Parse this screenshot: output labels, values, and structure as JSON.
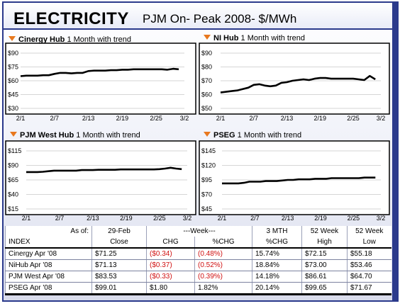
{
  "header": {
    "title": "ELECTRICITY",
    "subtitle": "PJM On- Peak 2008- $/MWh"
  },
  "chart_data": [
    {
      "type": "line",
      "title": "Cinergy Hub",
      "subtitle": "1 Month with trend",
      "x_ticks": [
        "2/1",
        "2/7",
        "2/13",
        "2/19",
        "2/25",
        "3/2"
      ],
      "y_ticks": [
        "$90",
        "$75",
        "$60",
        "$45",
        "$30"
      ],
      "ylim": [
        30,
        90
      ],
      "series": [
        {
          "color": "#000000",
          "x": [
            1,
            2,
            3,
            4,
            5,
            6,
            7,
            8,
            9,
            10,
            11,
            12,
            13,
            14,
            15,
            16,
            17,
            18,
            19,
            20,
            21,
            22,
            23,
            24,
            25,
            26,
            27,
            28,
            29
          ],
          "y": [
            65,
            65.5,
            65.5,
            65.5,
            66,
            66,
            67.5,
            68.5,
            68.5,
            68,
            68.5,
            68.5,
            70.5,
            71,
            71,
            71,
            71.5,
            71.5,
            72,
            72,
            72.5,
            72.5,
            72.5,
            72.5,
            72.5,
            72.5,
            72,
            73,
            72.5
          ]
        }
      ]
    },
    {
      "type": "line",
      "title": "NI Hub",
      "subtitle": "1 Month with trend",
      "x_ticks": [
        "2/1",
        "2/7",
        "2/13",
        "2/19",
        "2/25",
        "3/2"
      ],
      "y_ticks": [
        "$90",
        "$80",
        "$70",
        "$60",
        "$50"
      ],
      "ylim": [
        50,
        90
      ],
      "series": [
        {
          "color": "#000000",
          "x": [
            1,
            2,
            3,
            4,
            5,
            6,
            7,
            8,
            9,
            10,
            11,
            12,
            13,
            14,
            15,
            16,
            17,
            18,
            19,
            20,
            21,
            22,
            23,
            24,
            25,
            26,
            27,
            28,
            29
          ],
          "y": [
            61.5,
            62,
            62.5,
            63,
            64,
            65,
            67,
            67.5,
            66.5,
            66,
            66.5,
            68.5,
            69,
            70,
            70.5,
            71,
            70.5,
            71.5,
            72,
            72,
            71.5,
            71.5,
            71.5,
            71.5,
            71.5,
            71,
            70.5,
            73.5,
            71
          ]
        }
      ]
    },
    {
      "type": "line",
      "title": "PJM West Hub",
      "subtitle": "1 Month with trend",
      "x_ticks": [
        "2/1",
        "2/7",
        "2/13",
        "2/19",
        "2/25",
        "3/2"
      ],
      "y_ticks": [
        "$115",
        "$90",
        "$65",
        "$40",
        "$15"
      ],
      "ylim": [
        15,
        115
      ],
      "series": [
        {
          "color": "#000000",
          "x": [
            1,
            2,
            3,
            4,
            5,
            6,
            7,
            8,
            9,
            10,
            11,
            12,
            13,
            14,
            15,
            16,
            17,
            18,
            19,
            20,
            21,
            22,
            23,
            24,
            25,
            26,
            27,
            28,
            29
          ],
          "y": [
            78.5,
            78.5,
            78.5,
            79,
            80,
            81,
            81,
            81,
            81,
            81,
            82,
            82,
            82,
            82.5,
            82.5,
            82.5,
            82.5,
            83,
            83,
            83,
            83,
            83,
            83,
            83,
            83.5,
            84.5,
            86,
            84.5,
            83.5
          ]
        }
      ]
    },
    {
      "type": "line",
      "title": "PSEG",
      "subtitle": "1 Month with trend",
      "x_ticks": [
        "2/1",
        "2/7",
        "2/13",
        "2/19",
        "2/25",
        "3/2"
      ],
      "y_ticks": [
        "$145",
        "$120",
        "$95",
        "$70",
        "$45"
      ],
      "ylim": [
        45,
        145
      ],
      "series": [
        {
          "color": "#000000",
          "x": [
            1,
            2,
            3,
            4,
            5,
            6,
            7,
            8,
            9,
            10,
            11,
            12,
            13,
            14,
            15,
            16,
            17,
            18,
            19,
            20,
            21,
            22,
            23,
            24,
            25,
            26,
            27,
            28,
            29
          ],
          "y": [
            89,
            89,
            89,
            89,
            90,
            92,
            92,
            92,
            93,
            93,
            93,
            94,
            95,
            95,
            96,
            96,
            96,
            97,
            97,
            97,
            98,
            98,
            98,
            98,
            98,
            98,
            99,
            99,
            99
          ]
        }
      ]
    }
  ],
  "table": {
    "header1": [
      "As of:",
      "29-Feb",
      "---Week---",
      "3 MTH",
      "52 Week",
      "52 Week"
    ],
    "header2": [
      "INDEX",
      "Close",
      "CHG",
      "%CHG",
      "%CHG",
      "High",
      "Low"
    ],
    "rows": [
      {
        "index": "Cinergy Apr '08",
        "close": "$71.25",
        "chg": "($0.34)",
        "pchg": "(0.48%)",
        "m3": "15.74%",
        "high": "$72.15",
        "low": "$55.18",
        "neg": true
      },
      {
        "index": "NiHub Apr '08",
        "close": "$71.13",
        "chg": "($0.37)",
        "pchg": "(0.52%)",
        "m3": "18.84%",
        "high": "$73.00",
        "low": "$53.46",
        "neg": true
      },
      {
        "index": "PJM West Apr '08",
        "close": "$83.53",
        "chg": "($0.33)",
        "pchg": "(0.39%)",
        "m3": "14.18%",
        "high": "$86.61",
        "low": "$64.70",
        "neg": true
      },
      {
        "index": "PSEG Apr '08",
        "close": "$99.01",
        "chg": "$1.80",
        "pchg": "1.82%",
        "m3": "20.14%",
        "high": "$99.65",
        "low": "$71.67",
        "neg": false
      }
    ]
  }
}
